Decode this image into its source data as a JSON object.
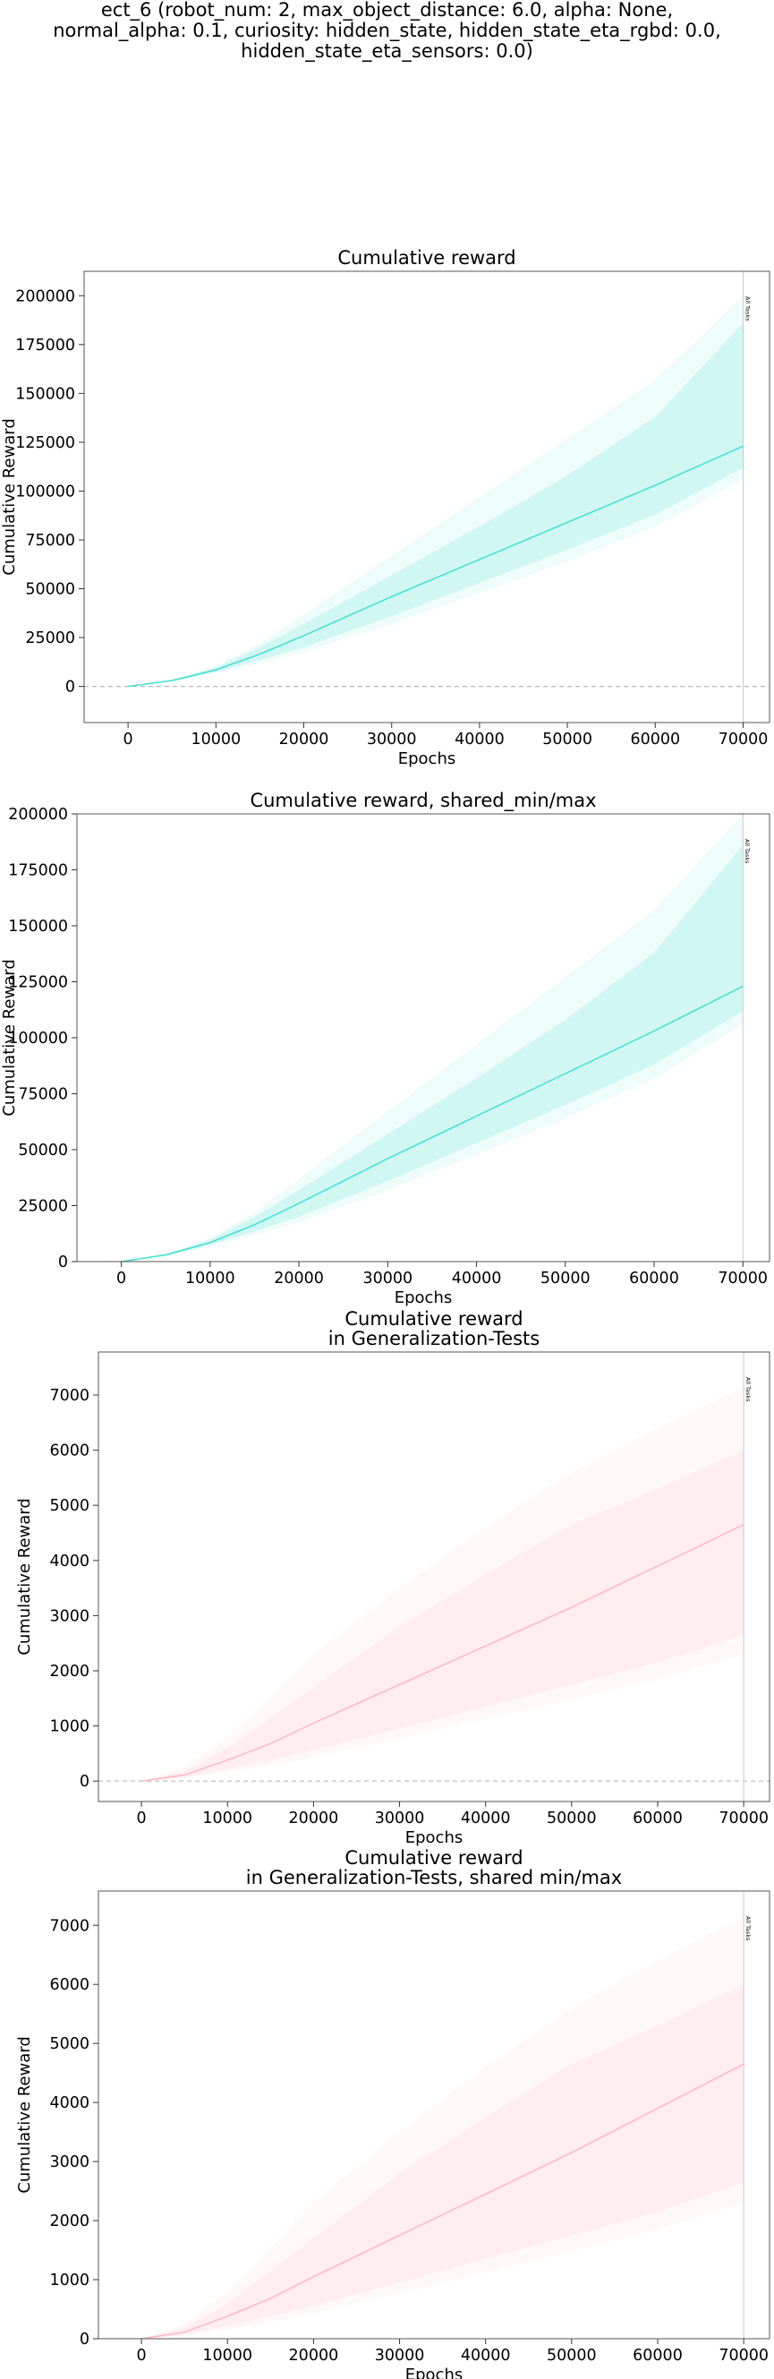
{
  "suptitle": "ect_6 (robot_num: 2, max_object_distance: 6.0, alpha: None,\nnormal_alpha: 0.1, curiosity: hidden_state, hidden_state_eta_rgbd: 0.0,\nhidden_state_eta_sensors: 0.0)",
  "chart_data": [
    {
      "type": "line",
      "title": "Cumulative reward",
      "xlabel": "Epochs",
      "ylabel": "Cumulative Reward",
      "xlim": [
        -5000,
        73000
      ],
      "ylim": [
        -18500,
        212500
      ],
      "xticks": [
        0,
        10000,
        20000,
        30000,
        40000,
        50000,
        60000,
        70000
      ],
      "yticks": [
        0,
        25000,
        50000,
        75000,
        100000,
        125000,
        150000,
        175000,
        200000
      ],
      "hline": 0,
      "vline": {
        "x": 70000,
        "label": "All Tasks"
      },
      "color": "#40e0d0",
      "x": [
        0,
        5000,
        10000,
        15000,
        20000,
        30000,
        40000,
        50000,
        60000,
        70000
      ],
      "mean": [
        0,
        3000,
        8500,
        16500,
        26000,
        46000,
        65000,
        84000,
        103000,
        123000
      ],
      "band_inner": {
        "lower": [
          0,
          2700,
          7500,
          13500,
          20000,
          36000,
          53000,
          70000,
          88000,
          112000
        ],
        "upper": [
          0,
          3300,
          9700,
          20000,
          32000,
          57000,
          82000,
          108000,
          138000,
          186000
        ]
      },
      "band_outer": {
        "lower": [
          0,
          2500,
          6800,
          12000,
          17500,
          32000,
          48000,
          64000,
          82000,
          106000
        ],
        "upper": [
          0,
          3500,
          10500,
          22000,
          37000,
          67000,
          97000,
          127000,
          157000,
          200000
        ]
      },
      "grid": false
    },
    {
      "type": "line",
      "title": "Cumulative reward, shared_min/max",
      "xlabel": "Epochs",
      "ylabel": "Cumulative Reward",
      "xlim": [
        -5000,
        73000
      ],
      "ylim": [
        0,
        200000
      ],
      "xticks": [
        0,
        10000,
        20000,
        30000,
        40000,
        50000,
        60000,
        70000
      ],
      "yticks": [
        0,
        25000,
        50000,
        75000,
        100000,
        125000,
        150000,
        175000,
        200000
      ],
      "vline": {
        "x": 70000,
        "label": "All Tasks"
      },
      "color": "#40e0d0",
      "x": [
        0,
        5000,
        10000,
        15000,
        20000,
        30000,
        40000,
        50000,
        60000,
        70000
      ],
      "mean": [
        0,
        3000,
        8500,
        16500,
        26000,
        46000,
        65000,
        84000,
        103000,
        123000
      ],
      "band_inner": {
        "lower": [
          0,
          2700,
          7500,
          13500,
          20000,
          36000,
          53000,
          70000,
          88000,
          112000
        ],
        "upper": [
          0,
          3300,
          9700,
          20000,
          32000,
          57000,
          82000,
          108000,
          138000,
          186000
        ]
      },
      "band_outer": {
        "lower": [
          0,
          2500,
          6800,
          12000,
          17500,
          32000,
          48000,
          64000,
          82000,
          106000
        ],
        "upper": [
          0,
          3500,
          10500,
          22000,
          37000,
          67000,
          97000,
          127000,
          157000,
          200000
        ]
      },
      "grid": false
    },
    {
      "type": "line",
      "title": "Cumulative reward\nin Generalization-Tests",
      "xlabel": "Epochs",
      "ylabel": "Cumulative Reward",
      "xlim": [
        -5000,
        73000
      ],
      "ylim": [
        -370,
        7780
      ],
      "xticks": [
        0,
        10000,
        20000,
        30000,
        40000,
        50000,
        60000,
        70000
      ],
      "yticks": [
        0,
        1000,
        2000,
        3000,
        4000,
        5000,
        6000,
        7000
      ],
      "hline": 0,
      "vline": {
        "x": 70000,
        "label": "All Tasks"
      },
      "color": "#ffb6c1",
      "x": [
        0,
        5000,
        10000,
        15000,
        20000,
        30000,
        40000,
        50000,
        60000,
        70000
      ],
      "mean": [
        0,
        110,
        380,
        680,
        1050,
        1750,
        2450,
        3150,
        3900,
        4650
      ],
      "band_inner": {
        "lower": [
          0,
          70,
          220,
          380,
          560,
          950,
          1350,
          1750,
          2150,
          2650
        ],
        "upper": [
          0,
          180,
          600,
          1150,
          1700,
          2800,
          3750,
          4650,
          5300,
          6000
        ]
      },
      "band_outer": {
        "lower": [
          0,
          50,
          160,
          280,
          430,
          770,
          1130,
          1480,
          1850,
          2300
        ],
        "upper": [
          0,
          250,
          800,
          1550,
          2300,
          3500,
          4600,
          5600,
          6400,
          7150
        ]
      },
      "grid": false
    },
    {
      "type": "line",
      "title": "Cumulative reward\nin Generalization-Tests, shared min/max",
      "xlabel": "Epochs",
      "ylabel": "Cumulative Reward",
      "xlim": [
        -5000,
        73000
      ],
      "ylim": [
        0,
        7580
      ],
      "xticks": [
        0,
        10000,
        20000,
        30000,
        40000,
        50000,
        60000,
        70000
      ],
      "yticks": [
        0,
        1000,
        2000,
        3000,
        4000,
        5000,
        6000,
        7000
      ],
      "vline": {
        "x": 70000,
        "label": "All Tasks"
      },
      "color": "#ffb6c1",
      "x": [
        0,
        5000,
        10000,
        15000,
        20000,
        30000,
        40000,
        50000,
        60000,
        70000
      ],
      "mean": [
        0,
        110,
        380,
        680,
        1050,
        1750,
        2450,
        3150,
        3900,
        4650
      ],
      "band_inner": {
        "lower": [
          0,
          70,
          220,
          380,
          560,
          950,
          1350,
          1750,
          2150,
          2650
        ],
        "upper": [
          0,
          180,
          600,
          1150,
          1700,
          2800,
          3750,
          4650,
          5300,
          6000
        ]
      },
      "band_outer": {
        "lower": [
          0,
          50,
          160,
          280,
          430,
          770,
          1130,
          1480,
          1850,
          2300
        ],
        "upper": [
          0,
          250,
          800,
          1550,
          2300,
          3500,
          4600,
          5600,
          6400,
          7150
        ]
      },
      "grid": false
    }
  ]
}
